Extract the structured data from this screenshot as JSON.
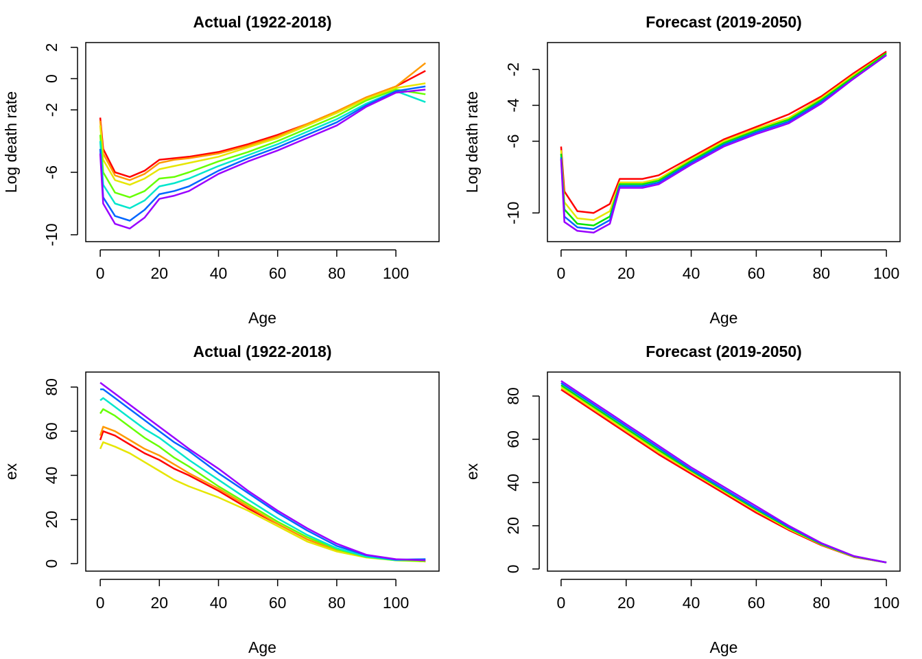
{
  "chart_data": [
    {
      "type": "line",
      "title": "Actual (1922-2018)",
      "xlabel": "Age",
      "ylabel": "Log death rate",
      "x": [
        0,
        1,
        5,
        10,
        15,
        20,
        25,
        30,
        40,
        50,
        60,
        70,
        80,
        90,
        100,
        110
      ],
      "xlim": [
        -4.9,
        114.6
      ],
      "xticks": [
        0,
        20,
        40,
        60,
        80,
        100
      ],
      "ylim": [
        -10.44,
        2.31
      ],
      "yticks": [
        -10,
        -6,
        -2,
        0,
        2
      ],
      "series": [
        {
          "color": "#ff0000",
          "values": [
            -2.5,
            -4.5,
            -6.0,
            -6.3,
            -5.9,
            -5.2,
            -5.1,
            -5.0,
            -4.7,
            -4.2,
            -3.6,
            -2.9,
            -2.1,
            -1.2,
            -0.5,
            0.5
          ]
        },
        {
          "color": "#ff9900",
          "values": [
            -2.7,
            -4.8,
            -6.2,
            -6.5,
            -6.1,
            -5.4,
            -5.2,
            -5.1,
            -4.8,
            -4.3,
            -3.7,
            -2.9,
            -2.1,
            -1.2,
            -0.5,
            1.0
          ]
        },
        {
          "color": "#e6e600",
          "values": [
            -3.0,
            -5.2,
            -6.5,
            -6.8,
            -6.4,
            -5.8,
            -5.6,
            -5.4,
            -5.0,
            -4.4,
            -3.8,
            -3.0,
            -2.2,
            -1.3,
            -0.6,
            -0.3
          ]
        },
        {
          "color": "#66ff00",
          "values": [
            -3.6,
            -6.0,
            -7.3,
            -7.6,
            -7.2,
            -6.4,
            -6.3,
            -6.0,
            -5.3,
            -4.7,
            -4.0,
            -3.2,
            -2.4,
            -1.4,
            -0.7,
            -1.0
          ]
        },
        {
          "color": "#00e6cc",
          "values": [
            -4.0,
            -6.8,
            -8.0,
            -8.3,
            -7.8,
            -6.9,
            -6.7,
            -6.4,
            -5.6,
            -4.9,
            -4.2,
            -3.4,
            -2.6,
            -1.6,
            -0.8,
            -1.5
          ]
        },
        {
          "color": "#0066ff",
          "values": [
            -4.5,
            -7.6,
            -8.8,
            -9.1,
            -8.4,
            -7.4,
            -7.2,
            -6.9,
            -5.9,
            -5.1,
            -4.4,
            -3.6,
            -2.8,
            -1.7,
            -0.8,
            -0.5
          ]
        },
        {
          "color": "#9900ff",
          "values": [
            -4.8,
            -8.0,
            -9.3,
            -9.6,
            -8.9,
            -7.7,
            -7.5,
            -7.2,
            -6.1,
            -5.3,
            -4.6,
            -3.8,
            -3.0,
            -1.8,
            -0.9,
            -0.7
          ]
        }
      ]
    },
    {
      "type": "line",
      "title": "Forecast (2019-2050)",
      "xlabel": "Age",
      "ylabel": "Log death rate",
      "x": [
        0,
        1,
        5,
        10,
        15,
        18,
        20,
        25,
        30,
        40,
        50,
        60,
        70,
        80,
        90,
        100
      ],
      "xlim": [
        -4.2,
        104.2
      ],
      "xticks": [
        0,
        20,
        40,
        60,
        80,
        100
      ],
      "ylim": [
        -11.6,
        -0.5
      ],
      "yticks": [
        -10,
        -6,
        -4,
        -2
      ],
      "series": [
        {
          "color": "#ff0000",
          "values": [
            -6.3,
            -8.8,
            -9.9,
            -10.0,
            -9.5,
            -8.1,
            -8.1,
            -8.1,
            -7.9,
            -6.9,
            -5.9,
            -5.2,
            -4.5,
            -3.5,
            -2.2,
            -1.0
          ]
        },
        {
          "color": "#e6e600",
          "values": [
            -6.5,
            -9.4,
            -10.3,
            -10.4,
            -9.9,
            -8.3,
            -8.3,
            -8.3,
            -8.1,
            -7.0,
            -6.0,
            -5.3,
            -4.7,
            -3.6,
            -2.3,
            -1.1
          ]
        },
        {
          "color": "#00e600",
          "values": [
            -6.7,
            -9.8,
            -10.6,
            -10.7,
            -10.2,
            -8.4,
            -8.4,
            -8.4,
            -8.2,
            -7.1,
            -6.1,
            -5.4,
            -4.8,
            -3.7,
            -2.4,
            -1.1
          ]
        },
        {
          "color": "#0066ff",
          "values": [
            -6.9,
            -10.2,
            -10.8,
            -10.9,
            -10.4,
            -8.5,
            -8.5,
            -8.5,
            -8.3,
            -7.2,
            -6.2,
            -5.5,
            -4.9,
            -3.8,
            -2.5,
            -1.2
          ]
        },
        {
          "color": "#9900ff",
          "values": [
            -7.0,
            -10.5,
            -11.0,
            -11.1,
            -10.6,
            -8.6,
            -8.6,
            -8.6,
            -8.4,
            -7.3,
            -6.3,
            -5.6,
            -5.0,
            -3.9,
            -2.5,
            -1.2
          ]
        }
      ]
    },
    {
      "type": "line",
      "title": "Actual (1922-2018)",
      "xlabel": "Age",
      "ylabel": "ex",
      "x": [
        0,
        1,
        5,
        10,
        15,
        20,
        25,
        30,
        40,
        50,
        60,
        70,
        80,
        90,
        100,
        110
      ],
      "xlim": [
        -4.9,
        114.6
      ],
      "xticks": [
        0,
        20,
        40,
        60,
        80,
        100
      ],
      "ylim": [
        -3.4,
        86.8
      ],
      "yticks": [
        0,
        20,
        40,
        60,
        80
      ],
      "series": [
        {
          "color": "#ff0000",
          "values": [
            56,
            60,
            58,
            54,
            50,
            47,
            43,
            40,
            33,
            25,
            18,
            11,
            6,
            3,
            1.8,
            1
          ]
        },
        {
          "color": "#ff9900",
          "values": [
            58,
            62,
            60,
            56,
            52,
            49,
            45,
            41,
            34,
            26,
            18,
            11,
            6,
            3,
            1.8,
            1
          ]
        },
        {
          "color": "#e6e600",
          "values": [
            52,
            55,
            53,
            50,
            46,
            42,
            38,
            35,
            30,
            24,
            17,
            10,
            5.5,
            2.8,
            1.5,
            1
          ]
        },
        {
          "color": "#66ff00",
          "values": [
            68,
            70,
            67,
            62,
            57,
            53,
            48,
            44,
            35,
            27,
            19,
            12,
            6.5,
            3,
            1.5,
            1.2
          ]
        },
        {
          "color": "#00e6cc",
          "values": [
            74,
            75,
            71,
            66,
            61,
            57,
            52,
            47,
            38,
            29,
            20.5,
            13,
            7,
            3.2,
            1.6,
            2
          ]
        },
        {
          "color": "#0066ff",
          "values": [
            79,
            79,
            75,
            70,
            65,
            60,
            55,
            51,
            41,
            32,
            23,
            15,
            8,
            3.8,
            1.8,
            2
          ]
        },
        {
          "color": "#9900ff",
          "values": [
            82,
            81,
            77,
            72,
            67,
            62,
            57,
            52,
            43,
            33,
            24,
            16,
            9,
            4,
            2,
            1.5
          ]
        }
      ]
    },
    {
      "type": "line",
      "title": "Forecast (2019-2050)",
      "xlabel": "Age",
      "ylabel": "ex",
      "x": [
        0,
        1,
        5,
        10,
        15,
        18,
        20,
        25,
        30,
        40,
        50,
        60,
        70,
        80,
        90,
        100
      ],
      "xlim": [
        -4.2,
        104.2
      ],
      "xticks": [
        0,
        20,
        40,
        60,
        80,
        100
      ],
      "ylim": [
        -1.0,
        91.1
      ],
      "yticks": [
        0,
        20,
        40,
        60,
        80
      ],
      "series": [
        {
          "color": "#ff0000",
          "values": [
            83,
            82,
            78,
            73,
            68,
            65,
            63,
            58,
            53,
            44,
            35,
            26,
            18,
            11,
            5.5,
            3
          ]
        },
        {
          "color": "#e6e600",
          "values": [
            84,
            83,
            79,
            74,
            69,
            66,
            64,
            59,
            54,
            45,
            36,
            27,
            18.5,
            11.3,
            5.6,
            3
          ]
        },
        {
          "color": "#00e600",
          "values": [
            85,
            84,
            80,
            75,
            70,
            67,
            65,
            60,
            55,
            45.5,
            36.5,
            27.5,
            19,
            11.5,
            5.8,
            3
          ]
        },
        {
          "color": "#0066ff",
          "values": [
            86,
            85,
            81,
            76,
            71,
            68,
            66,
            61,
            56,
            46,
            37,
            28,
            19.5,
            11.8,
            5.9,
            3
          ]
        },
        {
          "color": "#9900ff",
          "values": [
            87,
            86,
            82,
            77,
            72,
            69,
            67,
            62,
            57,
            47,
            38,
            29,
            20,
            12,
            6,
            3
          ]
        }
      ]
    }
  ]
}
